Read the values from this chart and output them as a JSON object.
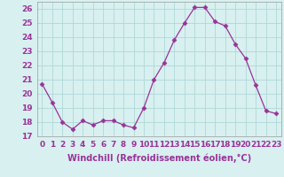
{
  "hours": [
    0,
    1,
    2,
    3,
    4,
    5,
    6,
    7,
    8,
    9,
    10,
    11,
    12,
    13,
    14,
    15,
    16,
    17,
    18,
    19,
    20,
    21,
    22,
    23
  ],
  "values": [
    20.7,
    19.4,
    18.0,
    17.5,
    18.1,
    17.8,
    18.1,
    18.1,
    17.8,
    17.6,
    19.0,
    21.0,
    22.2,
    23.8,
    25.0,
    26.1,
    26.1,
    25.1,
    24.8,
    23.5,
    22.5,
    20.6,
    18.8,
    18.6
  ],
  "line_color": "#993399",
  "marker": "D",
  "marker_size": 2.5,
  "bg_color": "#d8f0f0",
  "grid_color": "#b0d8d8",
  "xlabel": "Windchill (Refroidissement éolien,°C)",
  "xlabel_fontsize": 7,
  "tick_fontsize": 6.5,
  "ylim": [
    17,
    26.5
  ],
  "yticks": [
    17,
    18,
    19,
    20,
    21,
    22,
    23,
    24,
    25,
    26
  ],
  "xlim": [
    -0.5,
    23.5
  ],
  "label_color": "#993399"
}
